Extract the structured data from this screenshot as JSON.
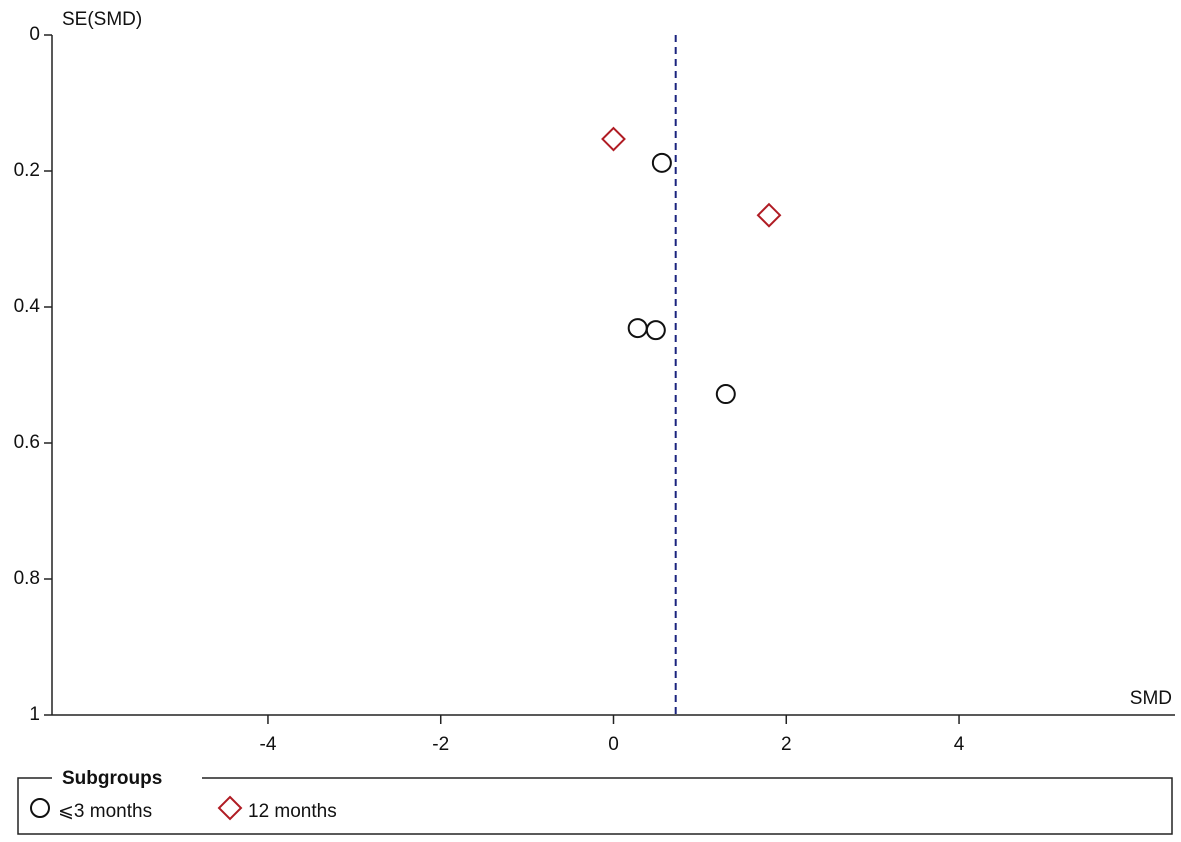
{
  "chart_data": {
    "type": "scatter",
    "y_label": "SE(SMD)",
    "x_label": "SMD",
    "xlim": [
      -6.5,
      6.5
    ],
    "xticks": [
      -4,
      -2,
      0,
      2,
      4
    ],
    "ylim": [
      0,
      1
    ],
    "yticks": [
      0,
      0.2,
      0.4,
      0.6,
      0.8,
      1
    ],
    "y_inverted": true,
    "reference_line": 0.72,
    "reference_color": "#1a237e",
    "legend_title": "Subgroups",
    "legend_position": "bottom",
    "series": [
      {
        "name": "⩽3 months",
        "color": "#111111",
        "marker": "circle",
        "x": [
          0.56,
          0.28,
          0.49,
          1.3
        ],
        "values": [
          0.188,
          0.431,
          0.434,
          0.528
        ]
      },
      {
        "name": "12 months",
        "color": "#b01c24",
        "marker": "diamond",
        "x": [
          0.0,
          1.8
        ],
        "values": [
          0.153,
          0.265
        ]
      }
    ]
  }
}
